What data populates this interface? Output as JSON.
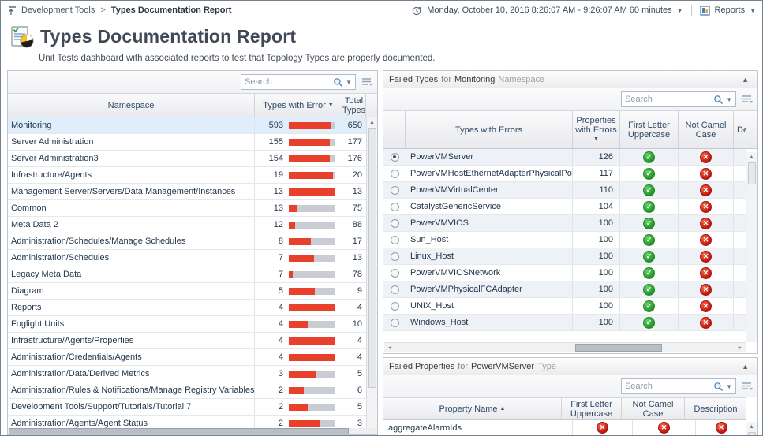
{
  "breadcrumb": {
    "items": [
      "Development Tools",
      "Types Documentation Report"
    ],
    "separator": ">"
  },
  "topbar": {
    "time_range": "Monday, October 10, 2016 8:26:07 AM - 9:26:07 AM 60 minutes",
    "reports_label": "Reports"
  },
  "header": {
    "title": "Types Documentation Report",
    "subtitle": "Unit Tests dashboard with associated reports to test that Topology Types are properly documented."
  },
  "namespaces_panel": {
    "search_placeholder": "Search",
    "columns": {
      "namespace": "Namespace",
      "types_with_error": "Types with Error",
      "total_types": "Total Types"
    },
    "sort_column": "types_with_error",
    "sort_direction": "desc",
    "selected_row": "Monitoring",
    "rows": [
      {
        "namespace": "Monitoring",
        "types_with_error": 593,
        "total_types": 650
      },
      {
        "namespace": "Server Administration",
        "types_with_error": 155,
        "total_types": 177
      },
      {
        "namespace": "Server Administration3",
        "types_with_error": 154,
        "total_types": 176
      },
      {
        "namespace": "Infrastructure/Agents",
        "types_with_error": 19,
        "total_types": 20
      },
      {
        "namespace": "Management Server/Servers/Data Management/Instances",
        "types_with_error": 13,
        "total_types": 13
      },
      {
        "namespace": "Common",
        "types_with_error": 13,
        "total_types": 75
      },
      {
        "namespace": "Meta Data 2",
        "types_with_error": 12,
        "total_types": 88
      },
      {
        "namespace": "Administration/Schedules/Manage Schedules",
        "types_with_error": 8,
        "total_types": 17
      },
      {
        "namespace": "Administration/Schedules",
        "types_with_error": 7,
        "total_types": 13
      },
      {
        "namespace": "Legacy Meta Data",
        "types_with_error": 7,
        "total_types": 78
      },
      {
        "namespace": "Diagram",
        "types_with_error": 5,
        "total_types": 9
      },
      {
        "namespace": "Reports",
        "types_with_error": 4,
        "total_types": 4
      },
      {
        "namespace": "Foglight Units",
        "types_with_error": 4,
        "total_types": 10
      },
      {
        "namespace": "Infrastructure/Agents/Properties",
        "types_with_error": 4,
        "total_types": 4
      },
      {
        "namespace": "Administration/Credentials/Agents",
        "types_with_error": 4,
        "total_types": 4
      },
      {
        "namespace": "Administration/Data/Derived Metrics",
        "types_with_error": 3,
        "total_types": 5
      },
      {
        "namespace": "Administration/Rules & Notifications/Manage Registry Variables",
        "types_with_error": 2,
        "total_types": 6
      },
      {
        "namespace": "Development Tools/Support/Tutorials/Tutorial 7",
        "types_with_error": 2,
        "total_types": 5
      },
      {
        "namespace": "Administration/Agents/Agent Status",
        "types_with_error": 2,
        "total_types": 3
      }
    ]
  },
  "failed_types_panel": {
    "title": {
      "prefix": "Failed Types",
      "connector": "for",
      "subject": "Monitoring",
      "suffix": "Namespace"
    },
    "search_placeholder": "Search",
    "columns": {
      "type": "Types with Errors",
      "properties_with_errors": "Properties with Errors",
      "first_letter_uppercase": "First Letter Uppercase",
      "not_camel_case": "Not Camel Case",
      "description": "Description"
    },
    "sort_column": "properties_with_errors",
    "sort_direction": "desc",
    "selected_row": "PowerVMServer",
    "rows": [
      {
        "type": "PowerVMServer",
        "properties_with_errors": 126,
        "first_letter_uppercase": "pass",
        "not_camel_case": "fail"
      },
      {
        "type": "PowerVMHostEthernetAdapterPhysicalPort",
        "properties_with_errors": 117,
        "first_letter_uppercase": "pass",
        "not_camel_case": "fail"
      },
      {
        "type": "PowerVMVirtualCenter",
        "properties_with_errors": 110,
        "first_letter_uppercase": "pass",
        "not_camel_case": "fail"
      },
      {
        "type": "CatalystGenericService",
        "properties_with_errors": 104,
        "first_letter_uppercase": "pass",
        "not_camel_case": "fail"
      },
      {
        "type": "PowerVMVIOS",
        "properties_with_errors": 100,
        "first_letter_uppercase": "pass",
        "not_camel_case": "fail"
      },
      {
        "type": "Sun_Host",
        "properties_with_errors": 100,
        "first_letter_uppercase": "pass",
        "not_camel_case": "fail"
      },
      {
        "type": "Linux_Host",
        "properties_with_errors": 100,
        "first_letter_uppercase": "pass",
        "not_camel_case": "fail"
      },
      {
        "type": "PowerVMVIOSNetwork",
        "properties_with_errors": 100,
        "first_letter_uppercase": "pass",
        "not_camel_case": "fail"
      },
      {
        "type": "PowerVMPhysicalFCAdapter",
        "properties_with_errors": 100,
        "first_letter_uppercase": "pass",
        "not_camel_case": "fail"
      },
      {
        "type": "UNIX_Host",
        "properties_with_errors": 100,
        "first_letter_uppercase": "pass",
        "not_camel_case": "fail"
      },
      {
        "type": "Windows_Host",
        "properties_with_errors": 100,
        "first_letter_uppercase": "pass",
        "not_camel_case": "fail"
      }
    ]
  },
  "failed_properties_panel": {
    "title": {
      "prefix": "Failed Properties",
      "connector": "for",
      "subject": "PowerVMServer",
      "suffix": "Type"
    },
    "search_placeholder": "Search",
    "columns": {
      "property": "Property Name",
      "first_letter_uppercase": "First Letter Uppercase",
      "not_camel_case": "Not Camel Case",
      "description": "Description"
    },
    "sort_column": "property",
    "sort_direction": "asc",
    "rows": [
      {
        "property": "aggregateAlarmIds",
        "first_letter_uppercase": "fail",
        "not_camel_case": "fail",
        "description": "fail"
      }
    ]
  },
  "colors": {
    "bar_red": "#e8402a",
    "bar_track": "#c9ccd2",
    "pass_green": "#1f9426",
    "fail_red": "#c2170d",
    "accent_blue": "#4a7fb5"
  }
}
